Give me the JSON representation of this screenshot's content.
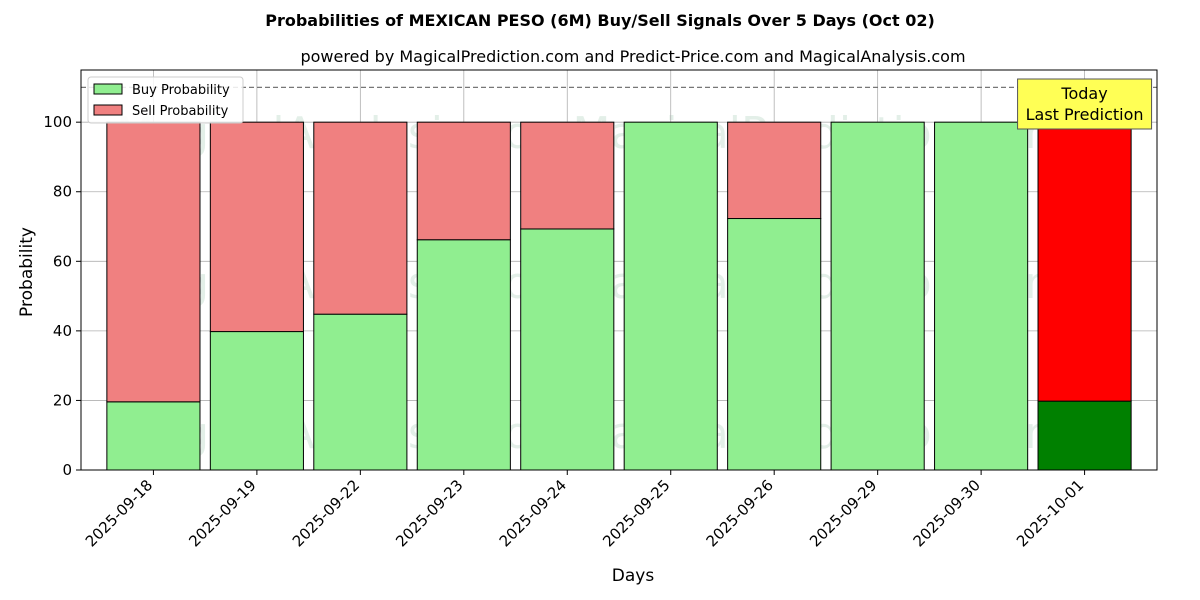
{
  "chart_data": {
    "type": "bar",
    "stacked": true,
    "title": "Probabilities of MEXICAN PESO (6M) Buy/Sell Signals Over 5 Days (Oct 02)",
    "subtitle": "powered by MagicalPrediction.com and Predict-Price.com and MagicalAnalysis.com",
    "xlabel": "Days",
    "ylabel": "Probability",
    "ylim": [
      0,
      115
    ],
    "yticks": [
      0,
      20,
      40,
      60,
      80,
      100
    ],
    "reference_line": 110,
    "grid": true,
    "legend_position": "top-left",
    "categories": [
      "2025-09-18",
      "2025-09-19",
      "2025-09-22",
      "2025-09-23",
      "2025-09-24",
      "2025-09-25",
      "2025-09-26",
      "2025-09-29",
      "2025-09-30",
      "2025-10-01"
    ],
    "series": [
      {
        "name": "Buy Probability",
        "color": "#90ee90",
        "values": [
          19.6,
          39.8,
          44.8,
          66.2,
          69.3,
          100,
          72.3,
          100,
          100,
          19.8
        ]
      },
      {
        "name": "Sell Probability",
        "color": "#f08080",
        "values": [
          80.4,
          60.2,
          55.2,
          33.8,
          30.7,
          0,
          27.7,
          0,
          0,
          80.2
        ]
      }
    ],
    "highlight": {
      "index": 9,
      "buy_color": "#008000",
      "sell_color": "#ff0000"
    },
    "annotation": {
      "lines": [
        "Today",
        "Last Prediction"
      ],
      "bg": "#ffff55"
    },
    "watermarks": [
      "MagicalAnalysis.com",
      "MagicalPrediction.com",
      "MagicalAnalysis.com",
      "MagicalPrediction.com",
      "MagicalAnalysis.com",
      "MagicalPrediction.com"
    ]
  }
}
